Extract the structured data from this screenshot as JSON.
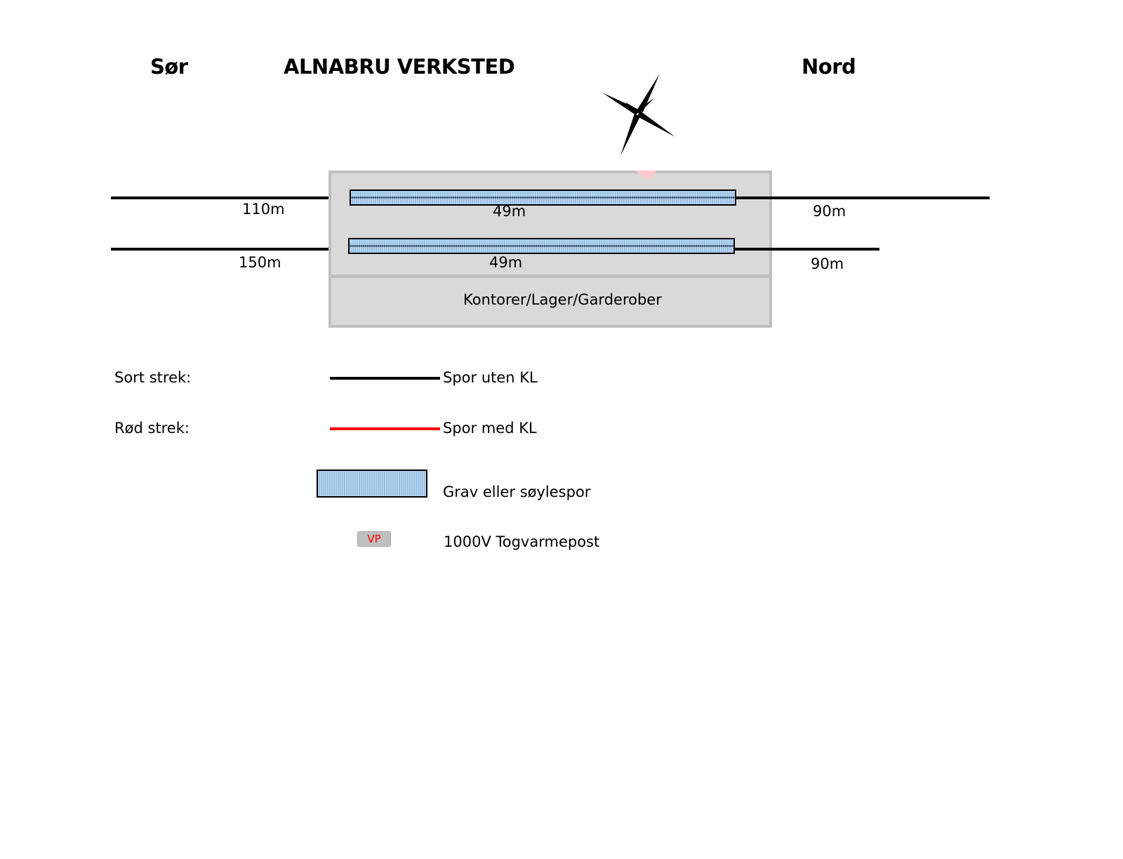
{
  "header": {
    "south": "Sør",
    "title": "ALNABRU VERKSTED",
    "north": "Nord"
  },
  "tracks": [
    {
      "left_length": "110m",
      "pit_length": "49m",
      "right_length": "90m"
    },
    {
      "left_length": "150m",
      "pit_length": "49m",
      "right_length": "90m"
    }
  ],
  "building": {
    "room_label": "Kontorer/Lager/Garderober"
  },
  "legend": {
    "black_label": "Sort strek:",
    "black_desc": "Spor uten KL",
    "red_label": "Rød strek:",
    "red_desc": "Spor med KL",
    "pit_desc": "Grav eller søylespor",
    "vp_badge": "VP",
    "vp_desc": "1000V Togvarmepost"
  },
  "colors": {
    "track_black": "#000000",
    "track_red": "#ff0000",
    "pit_blue": "#9dc3e6",
    "building_gray": "#d9d9d9",
    "vp_red": "#ff0000"
  },
  "icons": {
    "compass": "compass-rose-icon"
  }
}
